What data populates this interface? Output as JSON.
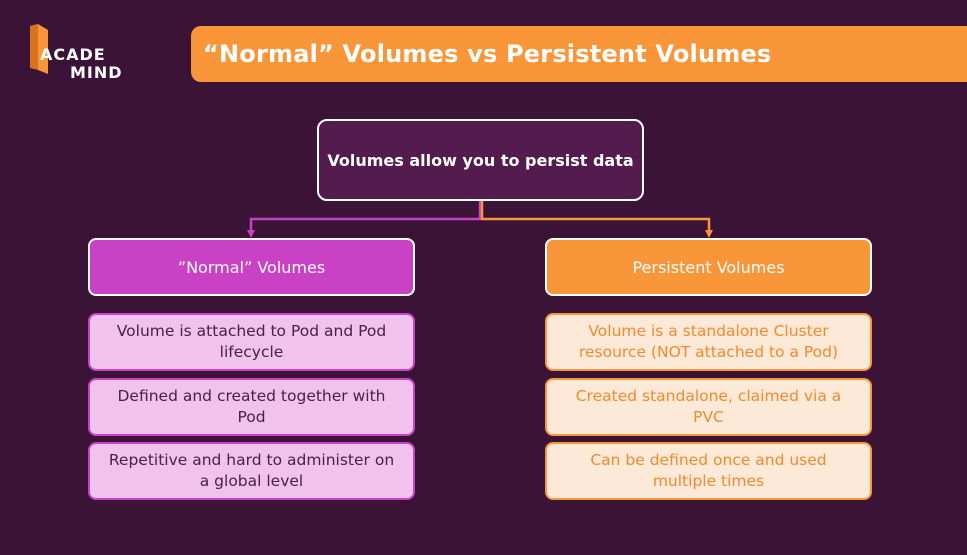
{
  "logo": {
    "line1": "ACADE",
    "line2": "MIND"
  },
  "title": "“Normal” Volumes vs Persistent Volumes",
  "root": {
    "label": "Volumes allow you to persist data"
  },
  "left": {
    "header": "”Normal” Volumes",
    "items": [
      "Volume is attached to Pod and Pod lifecycle",
      "Defined and created together with Pod",
      "Repetitive and hard to administer on a global level"
    ]
  },
  "right": {
    "header": "Persistent Volumes",
    "items": [
      "Volume is a standalone Cluster resource (NOT attached to a Pod)",
      "Created standalone, claimed via a PVC",
      "Can be defined once and used multiple times"
    ]
  },
  "colors": {
    "background": "#3b1337",
    "accent_orange": "#f99639",
    "accent_magenta": "#c941c4",
    "root_fill": "#541b4f"
  }
}
